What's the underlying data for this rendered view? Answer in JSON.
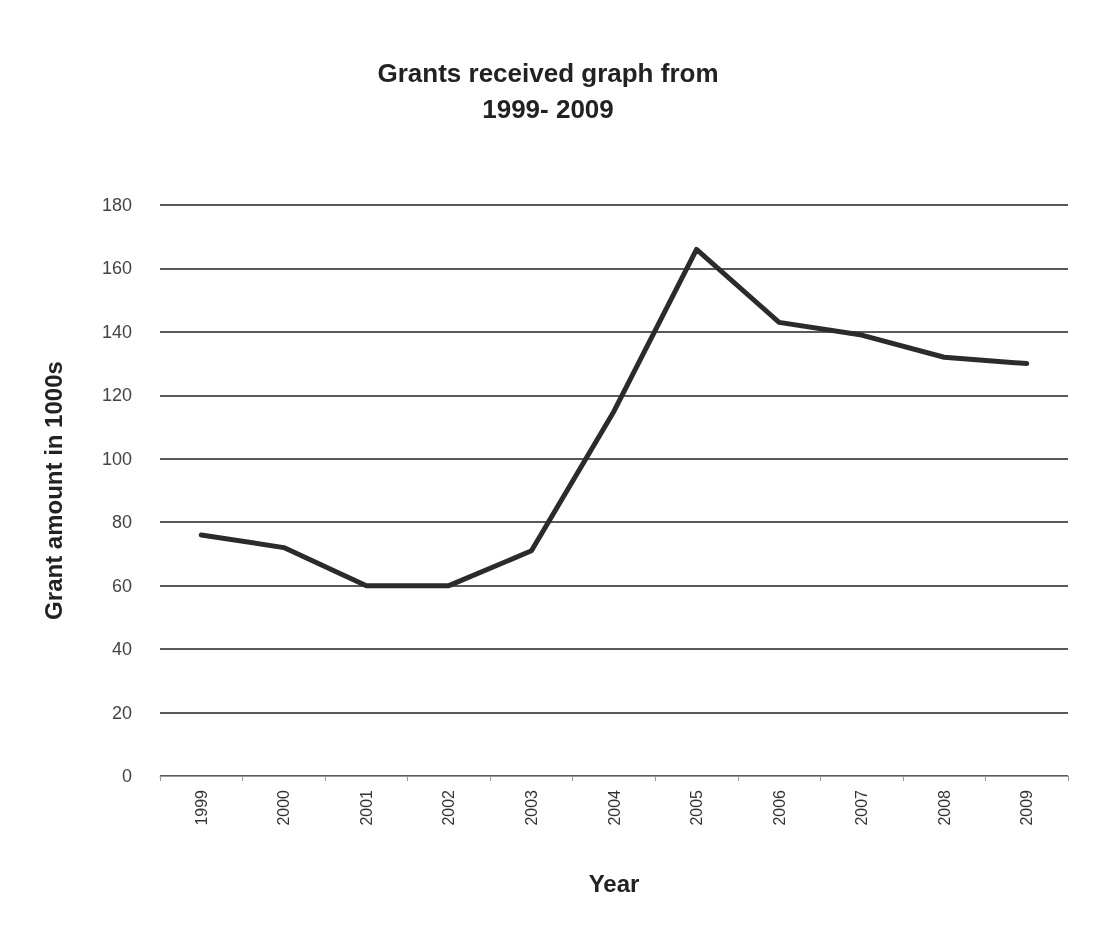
{
  "chart_data": {
    "type": "line",
    "title": "Grants received graph from\n1999- 2009",
    "xlabel": "Year",
    "ylabel": "Grant amount in 1000s",
    "categories": [
      "1999",
      "2000",
      "2001",
      "2002",
      "2003",
      "2004",
      "2005",
      "2006",
      "2007",
      "2008",
      "2009"
    ],
    "series": [
      {
        "color": "#2b2b2b",
        "values": [
          76,
          72,
          60,
          60,
          71,
          115,
          166,
          143,
          139,
          132,
          130
        ]
      }
    ],
    "ylim": [
      0,
      180
    ],
    "yticks": [
      0,
      20,
      40,
      60,
      80,
      100,
      120,
      140,
      160,
      180
    ],
    "grid": "y",
    "marker": "none",
    "line_style": "solid"
  }
}
